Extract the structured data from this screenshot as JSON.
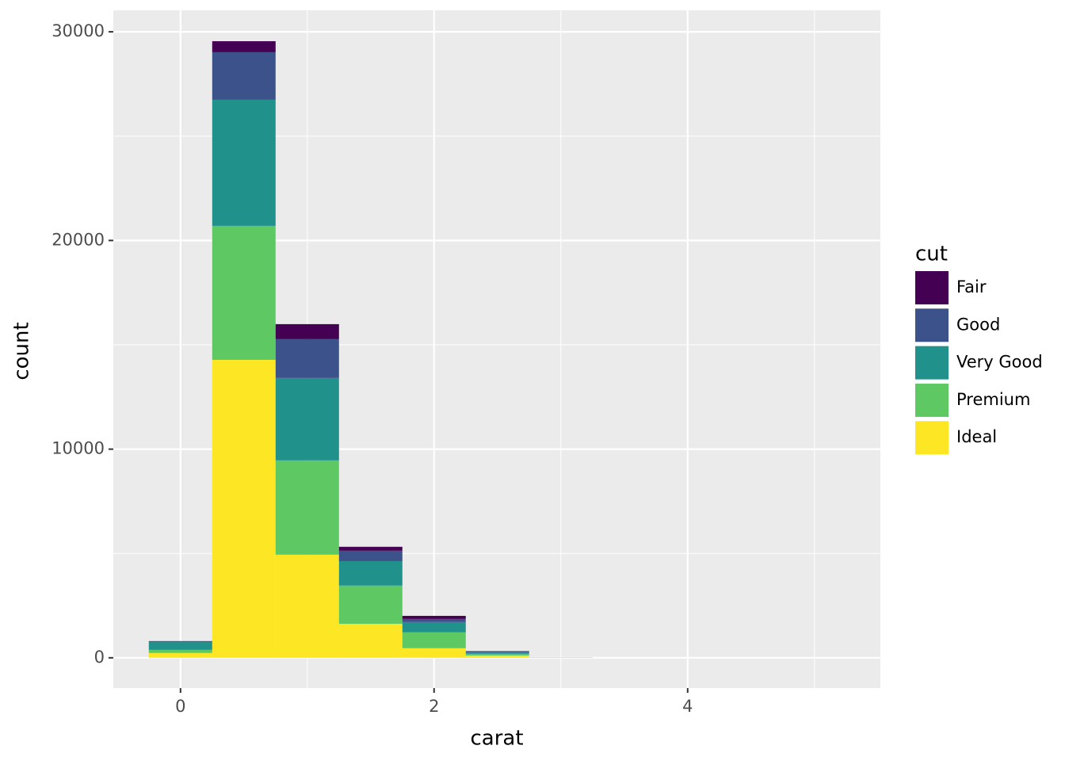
{
  "chart_data": {
    "type": "histogram",
    "x_label": "carat",
    "y_label": "count",
    "legend_title": "cut",
    "legend_position": "right",
    "grid": true,
    "bins": [
      -0.25,
      0.25,
      0.75,
      1.25,
      1.75,
      2.25,
      2.75,
      3.25,
      3.75,
      4.25,
      4.75,
      5.25
    ],
    "series": [
      {
        "name": "Fair",
        "color": "#440154",
        "values": [
          0,
          530,
          720,
          190,
          150,
          20,
          2,
          0,
          0,
          0,
          0
        ]
      },
      {
        "name": "Good",
        "color": "#3b528b",
        "values": [
          50,
          2280,
          1860,
          500,
          150,
          30,
          2,
          0,
          0,
          0,
          0
        ]
      },
      {
        "name": "Very Good",
        "color": "#21918c",
        "values": [
          370,
          6040,
          3950,
          1170,
          490,
          80,
          2,
          0,
          0,
          0,
          0
        ]
      },
      {
        "name": "Premium",
        "color": "#5ec962",
        "values": [
          150,
          6420,
          4520,
          1830,
          760,
          80,
          3,
          0,
          0,
          0,
          0
        ]
      },
      {
        "name": "Ideal",
        "color": "#fde725",
        "values": [
          230,
          14280,
          4940,
          1630,
          460,
          110,
          2,
          0,
          0,
          0,
          0
        ]
      }
    ],
    "stack_order": [
      "Ideal",
      "Premium",
      "Very Good",
      "Good",
      "Fair"
    ],
    "xlim": [
      -0.53,
      5.52
    ],
    "ylim": [
      -1450,
      31030
    ],
    "xticks": [
      0,
      2,
      4
    ],
    "yticks": [
      0,
      10000,
      20000,
      30000
    ],
    "x_minor_grid": [
      1,
      3,
      5
    ],
    "y_minor_grid": [
      5000,
      15000,
      25000
    ]
  }
}
